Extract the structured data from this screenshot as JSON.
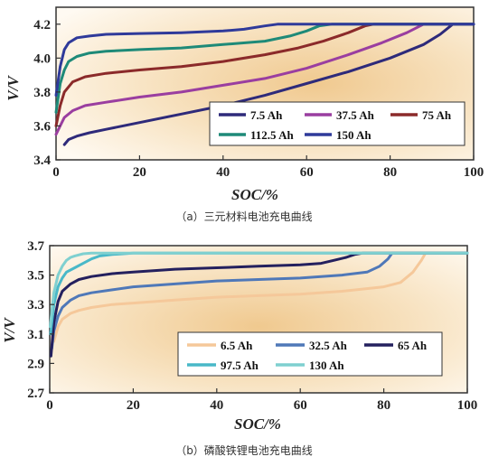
{
  "chart_data": [
    {
      "type": "line",
      "caption": "（a）三元材料电池充电曲线",
      "xlabel": "SOC/%",
      "ylabel": "V/V",
      "xlim": [
        0,
        100
      ],
      "ylim": [
        3.4,
        4.3
      ],
      "xticks": [
        "0",
        "20",
        "40",
        "60",
        "80",
        "100"
      ],
      "yticks": [
        "3.4",
        "3.6",
        "3.8",
        "4.0",
        "4.2"
      ],
      "legend_placement": "bottom-right",
      "series": [
        {
          "name": "7.5 Ah",
          "color": "#2e2a7a",
          "x": [
            2,
            3,
            5,
            8,
            12,
            20,
            30,
            40,
            50,
            60,
            70,
            80,
            88,
            92,
            95,
            100
          ],
          "y": [
            3.49,
            3.52,
            3.54,
            3.56,
            3.58,
            3.62,
            3.67,
            3.72,
            3.78,
            3.85,
            3.92,
            4.0,
            4.08,
            4.14,
            4.2,
            4.2
          ]
        },
        {
          "name": "37.5 Ah",
          "color": "#9a3ea0",
          "x": [
            0,
            1,
            2,
            4,
            7,
            12,
            20,
            30,
            40,
            50,
            60,
            70,
            78,
            84,
            88,
            100
          ],
          "y": [
            3.55,
            3.6,
            3.65,
            3.69,
            3.72,
            3.74,
            3.77,
            3.8,
            3.84,
            3.88,
            3.94,
            4.02,
            4.09,
            4.15,
            4.2,
            4.2
          ]
        },
        {
          "name": "75 Ah",
          "color": "#8b2a2a",
          "x": [
            0,
            1,
            2,
            4,
            7,
            12,
            20,
            30,
            40,
            50,
            58,
            64,
            70,
            74,
            76,
            100
          ],
          "y": [
            3.6,
            3.72,
            3.8,
            3.86,
            3.89,
            3.91,
            3.93,
            3.95,
            3.98,
            4.02,
            4.06,
            4.1,
            4.15,
            4.19,
            4.2,
            4.2
          ]
        },
        {
          "name": "112.5 Ah",
          "color": "#1e8a78",
          "x": [
            0,
            1,
            2,
            3,
            5,
            8,
            12,
            20,
            30,
            40,
            50,
            56,
            60,
            63,
            66,
            100
          ],
          "y": [
            3.68,
            3.85,
            3.93,
            3.98,
            4.01,
            4.03,
            4.04,
            4.05,
            4.06,
            4.08,
            4.1,
            4.13,
            4.16,
            4.19,
            4.2,
            4.2
          ]
        },
        {
          "name": "150 Ah",
          "color": "#2f3a9a",
          "x": [
            0,
            1,
            2,
            3,
            5,
            8,
            12,
            20,
            30,
            40,
            45,
            50,
            53,
            100
          ],
          "y": [
            3.78,
            3.95,
            4.05,
            4.09,
            4.12,
            4.13,
            4.14,
            4.145,
            4.15,
            4.16,
            4.17,
            4.19,
            4.2,
            4.2
          ]
        }
      ]
    },
    {
      "type": "line",
      "caption": "（b）磷酸铁锂电池充电曲线",
      "xlabel": "SOC/%",
      "ylabel": "V/V",
      "xlim": [
        0,
        100
      ],
      "ylim": [
        2.7,
        3.7
      ],
      "xticks": [
        "0",
        "20",
        "40",
        "60",
        "80",
        "100"
      ],
      "yticks": [
        "2.7",
        "2.9",
        "3.1",
        "3.3",
        "3.5",
        "3.7"
      ],
      "legend_placement": "bottom-right",
      "series": [
        {
          "name": "6.5 Ah",
          "color": "#f5c89a",
          "x": [
            1,
            2,
            3,
            5,
            7,
            10,
            15,
            20,
            30,
            40,
            50,
            60,
            70,
            80,
            84,
            87,
            89,
            90,
            100
          ],
          "y": [
            3.05,
            3.15,
            3.2,
            3.24,
            3.26,
            3.28,
            3.3,
            3.31,
            3.33,
            3.35,
            3.36,
            3.37,
            3.39,
            3.42,
            3.45,
            3.52,
            3.6,
            3.65,
            3.65
          ]
        },
        {
          "name": "32.5 Ah",
          "color": "#4f78b8",
          "x": [
            0.5,
            1,
            2,
            3,
            5,
            7,
            10,
            15,
            20,
            30,
            40,
            50,
            60,
            70,
            76,
            79,
            81,
            82,
            100
          ],
          "y": [
            3.0,
            3.12,
            3.22,
            3.28,
            3.33,
            3.36,
            3.38,
            3.4,
            3.42,
            3.44,
            3.46,
            3.47,
            3.48,
            3.5,
            3.52,
            3.56,
            3.61,
            3.65,
            3.65
          ]
        },
        {
          "name": "65 Ah",
          "color": "#24205e",
          "x": [
            0.3,
            1,
            2,
            3,
            5,
            7,
            10,
            15,
            20,
            30,
            40,
            50,
            60,
            65,
            68,
            71,
            73,
            75,
            100
          ],
          "y": [
            2.95,
            3.18,
            3.32,
            3.39,
            3.44,
            3.47,
            3.49,
            3.51,
            3.52,
            3.54,
            3.55,
            3.56,
            3.57,
            3.58,
            3.6,
            3.62,
            3.64,
            3.65,
            3.65
          ]
        },
        {
          "name": "97.5 Ah",
          "color": "#49b8c8",
          "x": [
            0.2,
            1,
            2,
            3,
            4,
            6,
            8,
            10,
            12,
            15,
            20,
            30,
            100
          ],
          "y": [
            3.1,
            3.3,
            3.42,
            3.48,
            3.52,
            3.55,
            3.58,
            3.61,
            3.63,
            3.64,
            3.65,
            3.65,
            3.65
          ]
        },
        {
          "name": "130 Ah",
          "color": "#7fd0d0",
          "x": [
            0.1,
            1,
            2,
            3,
            4,
            5,
            6,
            8,
            10,
            100
          ],
          "y": [
            3.15,
            3.38,
            3.5,
            3.56,
            3.6,
            3.62,
            3.63,
            3.645,
            3.65,
            3.65
          ]
        }
      ]
    }
  ]
}
